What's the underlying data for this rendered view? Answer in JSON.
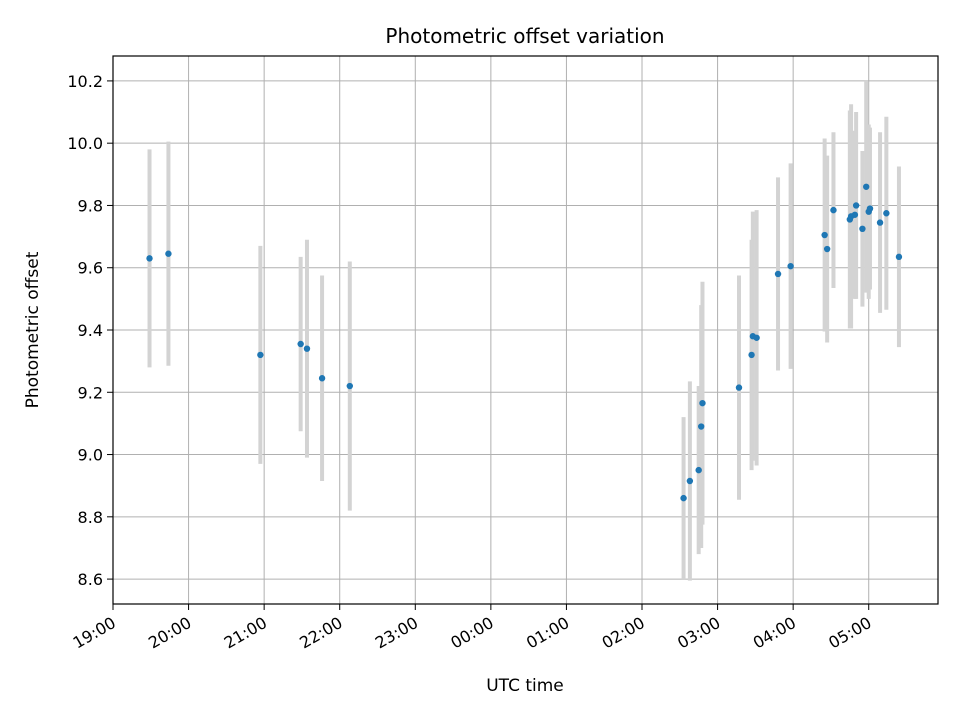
{
  "chart_data": {
    "type": "scatter",
    "title": "Photometric offset variation",
    "xlabel": "UTC time",
    "ylabel": "Photometric offset",
    "x_unit": "UTC time (HH:MM, crossing midnight)",
    "xlim": [
      "19:00",
      "05:55"
    ],
    "ylim": [
      8.52,
      10.28
    ],
    "x_ticks": [
      "19:00",
      "20:00",
      "21:00",
      "22:00",
      "23:00",
      "00:00",
      "01:00",
      "02:00",
      "03:00",
      "04:00",
      "05:00"
    ],
    "y_ticks": [
      8.6,
      8.8,
      9.0,
      9.2,
      9.4,
      9.6,
      9.8,
      10.0,
      10.2
    ],
    "y_tick_labels": [
      "8.6",
      "8.8",
      "9.0",
      "9.2",
      "9.4",
      "9.6",
      "9.8",
      "10.0",
      "10.2"
    ],
    "grid": true,
    "point_color": "#1f77b4",
    "errorbar_color": "#d3d3d3",
    "series": [
      {
        "points": [
          {
            "x": "19:29",
            "y": 9.63,
            "err": 0.35
          },
          {
            "x": "19:44",
            "y": 9.645,
            "err": 0.36
          },
          {
            "x": "20:57",
            "y": 9.32,
            "err": 0.35
          },
          {
            "x": "21:29",
            "y": 9.355,
            "err": 0.28
          },
          {
            "x": "21:34",
            "y": 9.34,
            "err": 0.35
          },
          {
            "x": "21:46",
            "y": 9.245,
            "err": 0.33
          },
          {
            "x": "22:08",
            "y": 9.22,
            "err": 0.4
          },
          {
            "x": "02:33",
            "y": 8.86,
            "err": 0.26
          },
          {
            "x": "02:38",
            "y": 8.915,
            "err": 0.32
          },
          {
            "x": "02:45",
            "y": 8.95,
            "err": 0.27
          },
          {
            "x": "02:47",
            "y": 9.09,
            "err": 0.39
          },
          {
            "x": "02:48",
            "y": 9.165,
            "err": 0.39
          },
          {
            "x": "03:17",
            "y": 9.215,
            "err": 0.36
          },
          {
            "x": "03:27",
            "y": 9.32,
            "err": 0.37
          },
          {
            "x": "03:28",
            "y": 9.38,
            "err": 0.4
          },
          {
            "x": "03:31",
            "y": 9.375,
            "err": 0.41
          },
          {
            "x": "03:48",
            "y": 9.58,
            "err": 0.31
          },
          {
            "x": "03:58",
            "y": 9.605,
            "err": 0.33
          },
          {
            "x": "04:25",
            "y": 9.705,
            "err": 0.31
          },
          {
            "x": "04:27",
            "y": 9.66,
            "err": 0.3
          },
          {
            "x": "04:32",
            "y": 9.785,
            "err": 0.25
          },
          {
            "x": "04:45",
            "y": 9.755,
            "err": 0.35
          },
          {
            "x": "04:46",
            "y": 9.765,
            "err": 0.36
          },
          {
            "x": "04:49",
            "y": 9.77,
            "err": 0.27
          },
          {
            "x": "04:50",
            "y": 9.8,
            "err": 0.3
          },
          {
            "x": "04:55",
            "y": 9.725,
            "err": 0.25
          },
          {
            "x": "04:58",
            "y": 9.86,
            "err": 0.34
          },
          {
            "x": "05:00",
            "y": 9.78,
            "err": 0.28
          },
          {
            "x": "05:01",
            "y": 9.79,
            "err": 0.26
          },
          {
            "x": "05:09",
            "y": 9.745,
            "err": 0.29
          },
          {
            "x": "05:14",
            "y": 9.775,
            "err": 0.31
          },
          {
            "x": "05:24",
            "y": 9.635,
            "err": 0.29
          }
        ]
      }
    ]
  }
}
